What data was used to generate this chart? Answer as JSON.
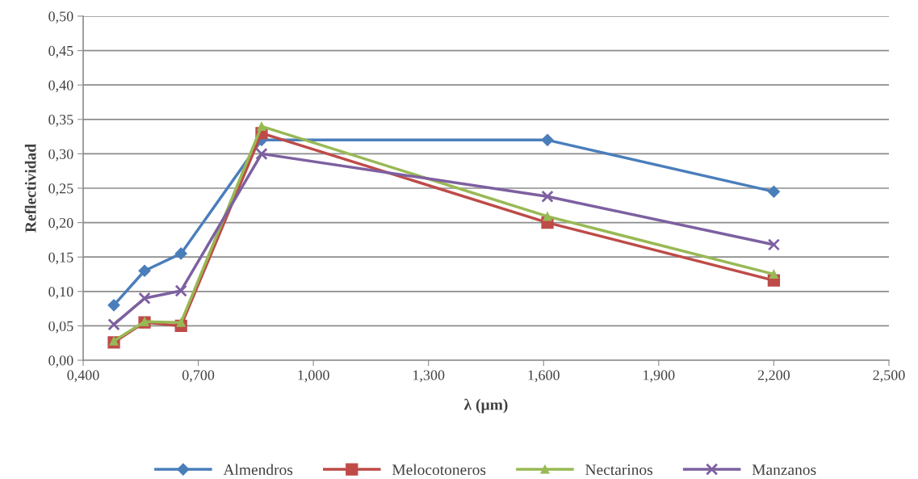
{
  "chart_data": {
    "type": "line",
    "xlabel": "λ (µm)",
    "ylabel": "Reflectividad",
    "x": [
      0.48,
      0.56,
      0.655,
      0.865,
      1.61,
      2.2
    ],
    "series": [
      {
        "name": "Almendros",
        "color": "#4a7ebb",
        "marker": "diamond",
        "values": [
          0.08,
          0.13,
          0.155,
          0.32,
          0.32,
          0.245
        ]
      },
      {
        "name": "Melocotoneros",
        "color": "#be4b48",
        "marker": "square",
        "values": [
          0.026,
          0.055,
          0.05,
          0.33,
          0.2,
          0.116
        ]
      },
      {
        "name": "Nectarinos",
        "color": "#98b954",
        "marker": "triangle",
        "values": [
          0.028,
          0.056,
          0.055,
          0.34,
          0.209,
          0.125
        ]
      },
      {
        "name": "Manzanos",
        "color": "#7d60a0",
        "marker": "cross",
        "values": [
          0.052,
          0.09,
          0.101,
          0.3,
          0.238,
          0.168
        ]
      }
    ],
    "xlim": [
      0.4,
      2.5
    ],
    "xticks": [
      {
        "value": 0.4,
        "label": "0,400"
      },
      {
        "value": 0.7,
        "label": "0,700"
      },
      {
        "value": 1.0,
        "label": "1,000"
      },
      {
        "value": 1.3,
        "label": "1,300"
      },
      {
        "value": 1.6,
        "label": "1,600"
      },
      {
        "value": 1.9,
        "label": "1,900"
      },
      {
        "value": 2.2,
        "label": "2,200"
      },
      {
        "value": 2.5,
        "label": "2,500"
      }
    ],
    "ylim": [
      0,
      0.5
    ],
    "yticks": [
      {
        "value": 0,
        "label": "0,00"
      },
      {
        "value": 0.05,
        "label": "0,05"
      },
      {
        "value": 0.1,
        "label": "0,10"
      },
      {
        "value": 0.15,
        "label": "0,15"
      },
      {
        "value": 0.2,
        "label": "0,20"
      },
      {
        "value": 0.25,
        "label": "0,25"
      },
      {
        "value": 0.3,
        "label": "0,30"
      },
      {
        "value": 0.35,
        "label": "0,35"
      },
      {
        "value": 0.4,
        "label": "0,40"
      },
      {
        "value": 0.45,
        "label": "0,45"
      },
      {
        "value": 0.5,
        "label": "0,50"
      }
    ],
    "grid": "y",
    "legend": "bottom",
    "line_style": "solid"
  }
}
